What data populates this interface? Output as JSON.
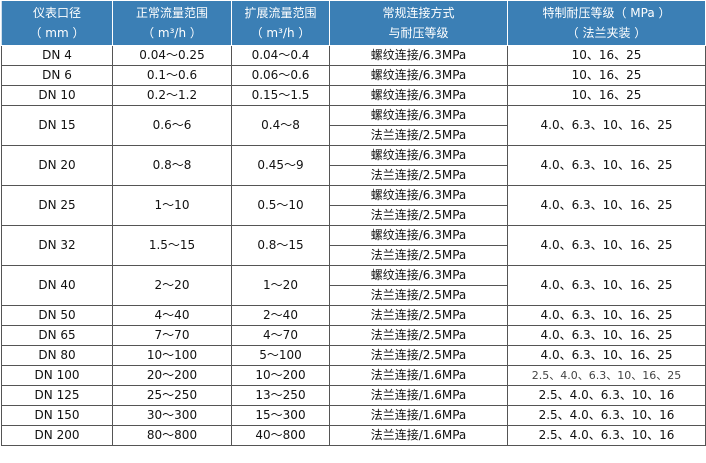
{
  "headers": [
    [
      "仪表口径",
      "（ mm ）"
    ],
    [
      "正常流量范围",
      "（ m³/h ）"
    ],
    [
      "扩展流量范围",
      "（ m³/h ）"
    ],
    [
      "常规连接方式",
      "与耐压等级"
    ],
    [
      "特制耐压等级（ MPa ）",
      "（ 法兰夹装 ）"
    ]
  ],
  "rows": [
    {
      "dn": "DN 4",
      "normal": "0.04～0.25",
      "ext": "0.04～0.4",
      "conn": [
        "螺纹连接/6.3MPa"
      ],
      "special": "10、16、25"
    },
    {
      "dn": "DN 6",
      "normal": "0.1～0.6",
      "ext": "0.06～0.6",
      "conn": [
        "螺纹连接/6.3MPa"
      ],
      "special": "10、16、25"
    },
    {
      "dn": "DN 10",
      "normal": "0.2～1.2",
      "ext": "0.15～1.5",
      "conn": [
        "螺纹连接/6.3MPa"
      ],
      "special": "10、16、25"
    },
    {
      "dn": "DN 15",
      "normal": "0.6～6",
      "ext": "0.4～8",
      "conn": [
        "螺纹连接/6.3MPa",
        "法兰连接/2.5MPa"
      ],
      "special": "4.0、6.3、10、16、25"
    },
    {
      "dn": "DN 20",
      "normal": "0.8～8",
      "ext": "0.45～9",
      "conn": [
        "螺纹连接/6.3MPa",
        "法兰连接/2.5MPa"
      ],
      "special": "4.0、6.3、10、16、25"
    },
    {
      "dn": "DN 25",
      "normal": "1～10",
      "ext": "0.5～10",
      "conn": [
        "螺纹连接/6.3MPa",
        "法兰连接/2.5MPa"
      ],
      "special": "4.0、6.3、10、16、25"
    },
    {
      "dn": "DN 32",
      "normal": "1.5～15",
      "ext": "0.8～15",
      "conn": [
        "螺纹连接/6.3MPa",
        "法兰连接/2.5MPa"
      ],
      "special": "4.0、6.3、10、16、25"
    },
    {
      "dn": "DN 40",
      "normal": "2～20",
      "ext": "1～20",
      "conn": [
        "螺纹连接/6.3MPa",
        "法兰连接/2.5MPa"
      ],
      "special": "4.0、6.3、10、16、25"
    },
    {
      "dn": "DN 50",
      "normal": "4～40",
      "ext": "2～40",
      "conn": [
        "法兰连接/2.5MPa"
      ],
      "special": "4.0、6.3、10、16、25"
    },
    {
      "dn": "DN 65",
      "normal": "7～70",
      "ext": "4～70",
      "conn": [
        "法兰连接/2.5MPa"
      ],
      "special": "4.0、6.3、10、16、25"
    },
    {
      "dn": "DN 80",
      "normal": "10～100",
      "ext": "5～100",
      "conn": [
        "法兰连接/2.5MPa"
      ],
      "special": "4.0、6.3、10、16、25"
    },
    {
      "dn": "DN 100",
      "normal": "20～200",
      "ext": "10～200",
      "conn": [
        "法兰连接/1.6MPa"
      ],
      "special": "2.5、4.0、6.3、10、16、25"
    },
    {
      "dn": "DN 125",
      "normal": "25～250",
      "ext": "13～250",
      "conn": [
        "法兰连接/1.6MPa"
      ],
      "special": "2.5、4.0、6.3、10、16"
    },
    {
      "dn": "DN 150",
      "normal": "30～300",
      "ext": "15～300",
      "conn": [
        "法兰连接/1.6MPa"
      ],
      "special": "2.5、4.0、6.3、10、16"
    },
    {
      "dn": "DN 200",
      "normal": "80～800",
      "ext": "40～800",
      "conn": [
        "法兰连接/1.6MPa"
      ],
      "special": "2.5、4.0、6.3、10、16"
    }
  ]
}
